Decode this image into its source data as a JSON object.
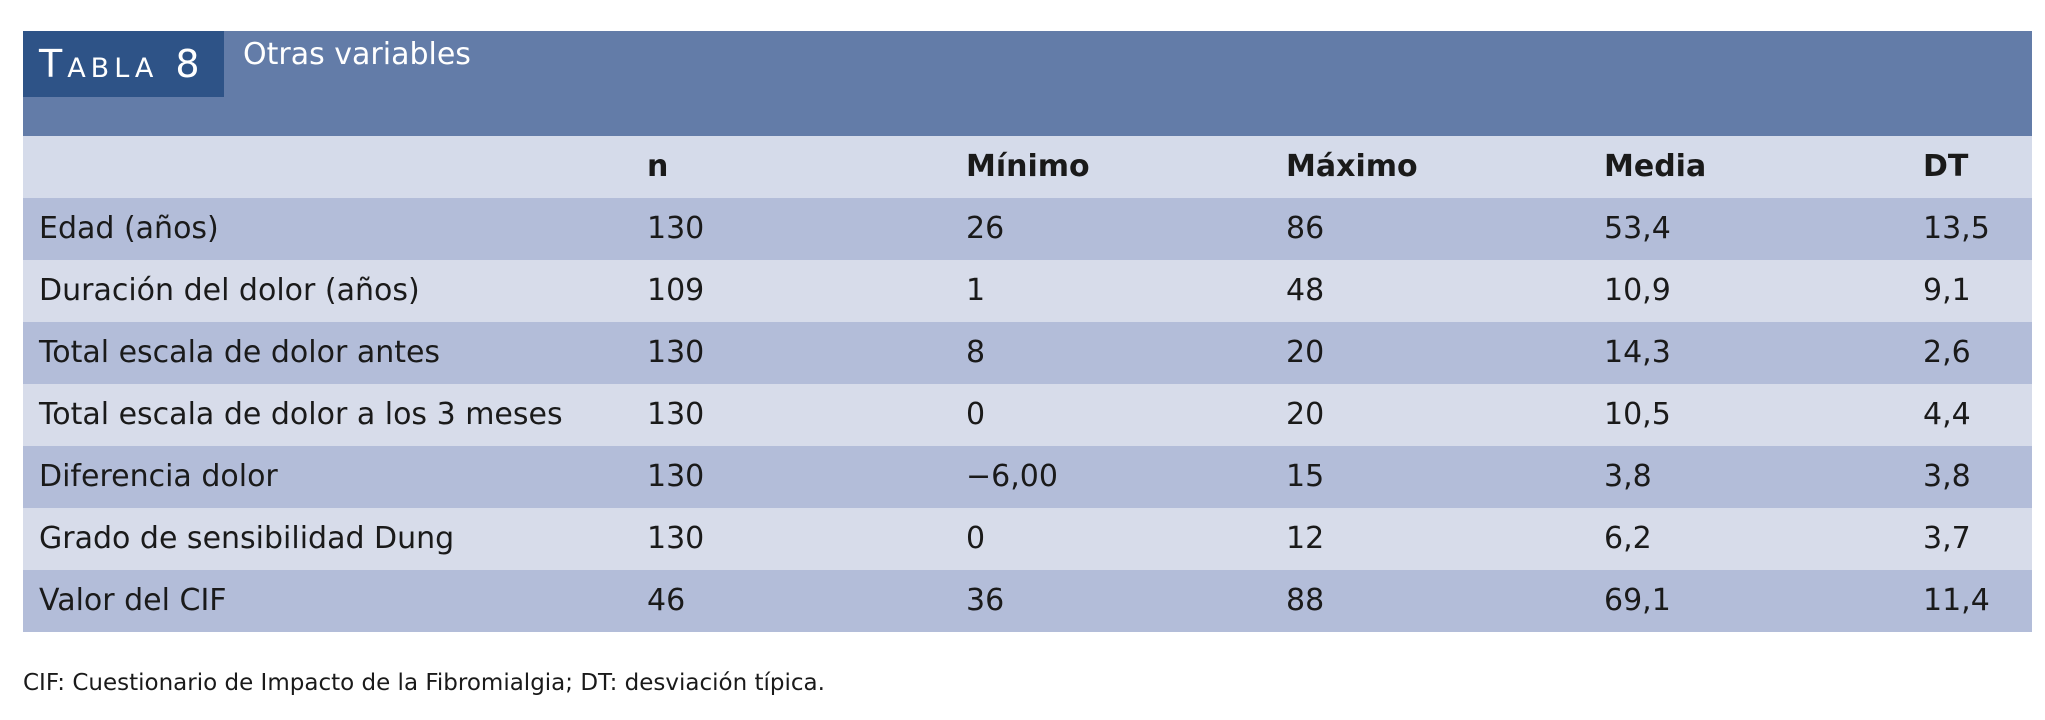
{
  "header": {
    "label": "Tabla 8",
    "title": "Otras variables"
  },
  "table": {
    "columns": [
      "n",
      "Mínimo",
      "Máximo",
      "Media",
      "DT"
    ],
    "rows": [
      [
        "Edad (años)",
        "130",
        "26",
        "86",
        "53,4",
        "13,5"
      ],
      [
        "Duración del dolor (años)",
        "109",
        "1",
        "48",
        "10,9",
        "9,1"
      ],
      [
        "Total escala de dolor antes",
        "130",
        "8",
        "20",
        "14,3",
        "2,6"
      ],
      [
        "Total escala de dolor a los 3 meses",
        "130",
        "0",
        "20",
        "10,5",
        "4,4"
      ],
      [
        "Diferencia dolor",
        "130",
        "−6,00",
        "15",
        "3,8",
        "3,8"
      ],
      [
        "Grado de sensibilidad Dung",
        "130",
        "0",
        "12",
        "6,2",
        "3,7"
      ],
      [
        "Valor del CIF",
        "46",
        "36",
        "88",
        "69,1",
        "11,4"
      ]
    ]
  },
  "footnote": "CIF: Cuestionario de Impacto de la Fibromialgia; DT: desviación típica."
}
